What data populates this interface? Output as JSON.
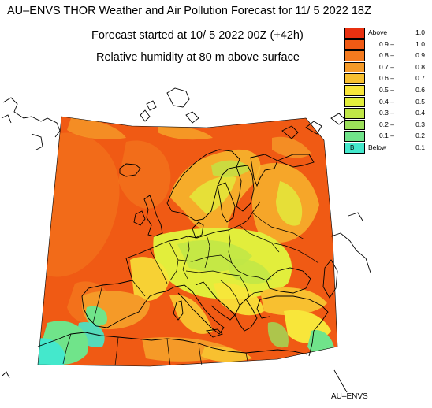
{
  "title": "AU–ENVS THOR Weather and Air Pollution Forecast for 11/ 5 2022  18Z",
  "subtitle_forecast": "Forecast started at 10/ 5 2022  00Z (+42h)",
  "subtitle_variable": "Relative humidity at 80 m above surface",
  "credit": "AU–ENVS",
  "legend": [
    {
      "low": "Above",
      "high": "1.0",
      "color": "#e83010"
    },
    {
      "low": "0.9",
      "high": "1.0",
      "color": "#f05a14"
    },
    {
      "low": "0.8",
      "high": "0.9",
      "color": "#f47a1e"
    },
    {
      "low": "0.7",
      "high": "0.8",
      "color": "#f59a28"
    },
    {
      "low": "0.6",
      "high": "0.7",
      "color": "#f8c030"
    },
    {
      "low": "0.5",
      "high": "0.6",
      "color": "#f8e63a"
    },
    {
      "low": "0.4",
      "high": "0.5",
      "color": "#e2ee3c"
    },
    {
      "low": "0.3",
      "high": "0.4",
      "color": "#c0e646"
    },
    {
      "low": "0.2",
      "high": "0.3",
      "color": "#9ce05a"
    },
    {
      "low": "0.1",
      "high": "0.2",
      "color": "#70e48a"
    },
    {
      "low": "Below",
      "high": "0.1",
      "color": "#44e8cc",
      "mark": "B"
    }
  ]
}
